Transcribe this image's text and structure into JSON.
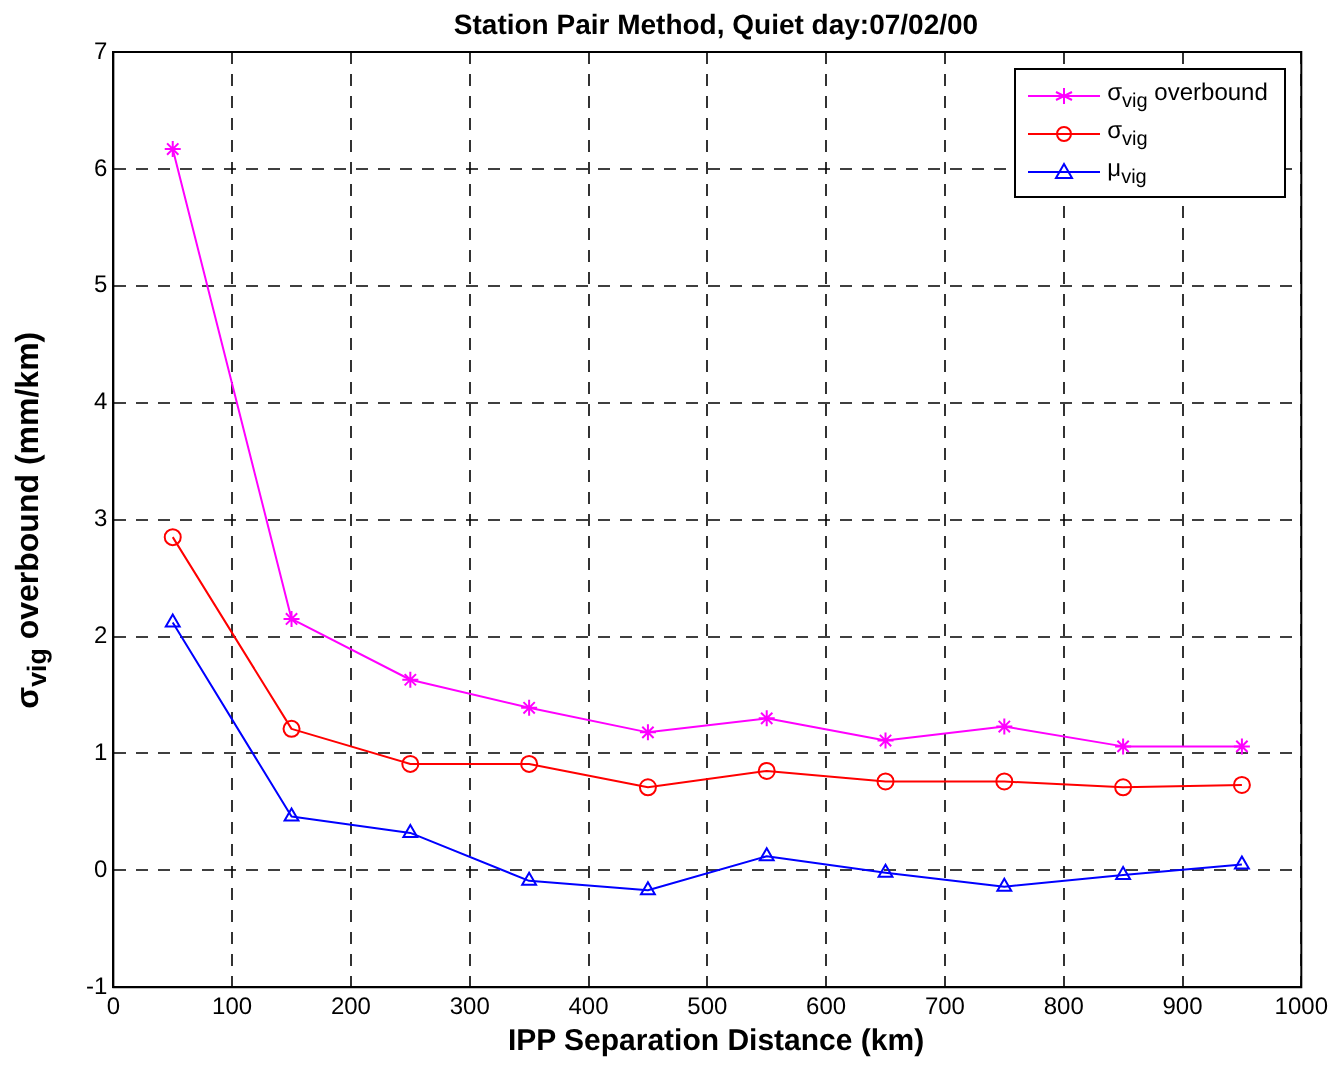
{
  "chart_data": {
    "type": "line",
    "title": "Station Pair Method, Quiet day:07/02/00",
    "xlabel": "IPP Separation Distance (km)",
    "ylabel": "σ$_{vig}$ overbound (mm/km)",
    "x": [
      50,
      150,
      250,
      350,
      450,
      550,
      650,
      750,
      850,
      950
    ],
    "series": [
      {
        "name": "σ$_{vig}$ overbound",
        "color": "#ff00ff",
        "marker": "cross",
        "values": [
          6.17,
          2.15,
          1.63,
          1.39,
          1.18,
          1.3,
          1.11,
          1.23,
          1.06,
          1.06
        ]
      },
      {
        "name": "σ$_{vig}$",
        "color": "#ff0000",
        "marker": "circle",
        "values": [
          2.85,
          1.21,
          0.91,
          0.91,
          0.71,
          0.85,
          0.76,
          0.76,
          0.71,
          0.73
        ]
      },
      {
        "name": "μ$_{vig}$",
        "color": "#0000ff",
        "marker": "triangle",
        "values": [
          2.12,
          0.46,
          0.32,
          -0.09,
          -0.17,
          0.12,
          -0.02,
          -0.14,
          -0.04,
          0.05
        ]
      }
    ],
    "xlim": [
      0,
      1000
    ],
    "xticks": [
      0,
      100,
      200,
      300,
      400,
      500,
      600,
      700,
      800,
      900,
      1000
    ],
    "ylim": [
      -1,
      7
    ],
    "yticks": [
      -1,
      0,
      1,
      2,
      3,
      4,
      5,
      6,
      7
    ],
    "grid": true,
    "legend": "top right",
    "line_style": "solid"
  }
}
